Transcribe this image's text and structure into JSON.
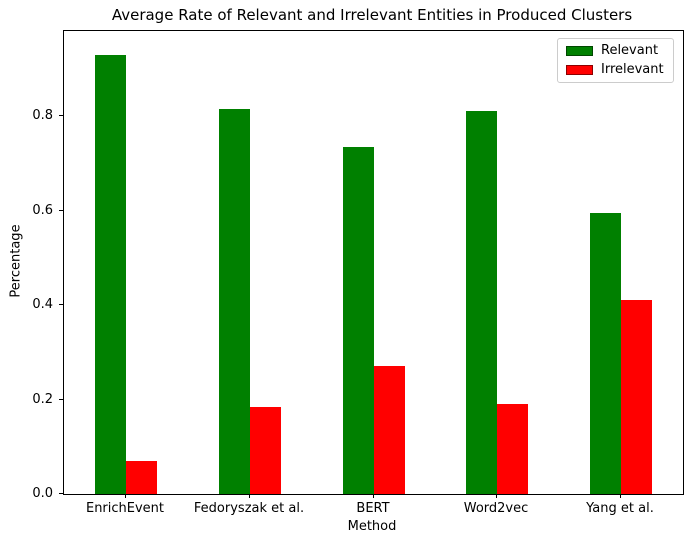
{
  "chart_data": {
    "type": "bar",
    "title": "Average Rate of Relevant and Irrelevant Entities in Produced Clusters",
    "xlabel": "Method",
    "ylabel": "Percentage",
    "categories": [
      "EnrichEvent",
      "Fedoryszak et al.",
      "BERT",
      "Word2vec",
      "Yang et al."
    ],
    "series": [
      {
        "name": "Relevant",
        "color": "#008000",
        "values": [
          0.93,
          0.815,
          0.735,
          0.81,
          0.595
        ]
      },
      {
        "name": "Irrelevant",
        "color": "#ff0000",
        "values": [
          0.07,
          0.185,
          0.27,
          0.19,
          0.41
        ]
      }
    ],
    "ylim": [
      0,
      0.98
    ],
    "yticks": [
      0.0,
      0.2,
      0.4,
      0.6,
      0.8
    ],
    "ytick_format": "one_decimal",
    "legend_position": "upper right",
    "grid": false,
    "bar_group_width_fraction": 0.5,
    "axis_color": "#000000",
    "background_color": "#ffffff"
  }
}
